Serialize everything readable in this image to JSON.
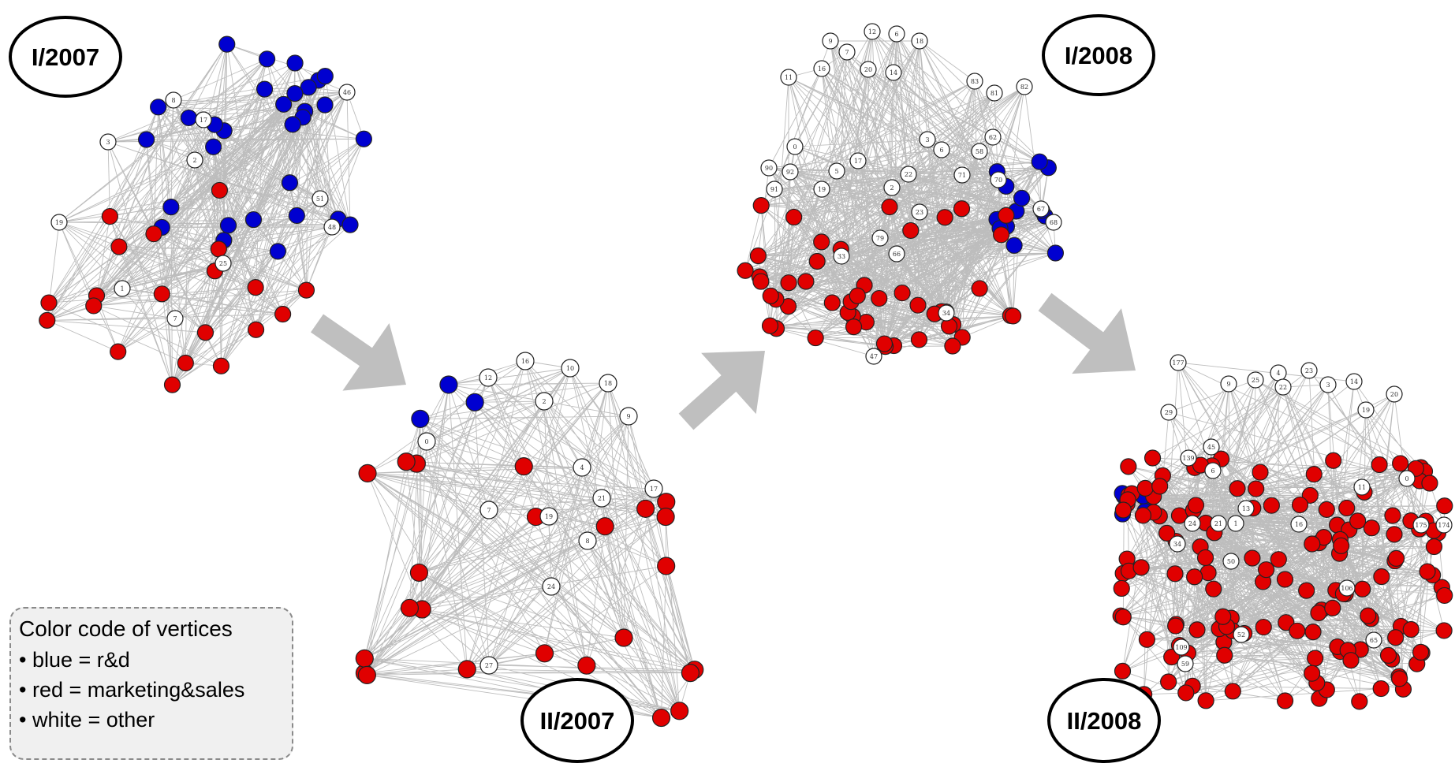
{
  "colors": {
    "rd": "#0000d0",
    "marketing_sales": "#e00000",
    "other": "#ffffff",
    "edge": "#bdbdbd",
    "arrow": "#bfbfbf"
  },
  "periods": [
    {
      "id": "I/2007",
      "label": "I/2007",
      "nodes": [
        {
          "id": "8",
          "group": "other",
          "label": "8"
        },
        {
          "id": "17",
          "group": "other",
          "label": "17"
        },
        {
          "id": "3",
          "group": "other",
          "label": "3"
        },
        {
          "id": "2",
          "group": "other",
          "label": "2"
        },
        {
          "id": "46",
          "group": "other",
          "label": "46"
        },
        {
          "id": "51",
          "group": "other",
          "label": "51"
        },
        {
          "id": "48",
          "group": "other",
          "label": "48"
        },
        {
          "id": "19",
          "group": "other",
          "label": "19"
        },
        {
          "id": "25",
          "group": "other",
          "label": "25"
        },
        {
          "id": "1",
          "group": "other",
          "label": "1"
        },
        {
          "id": "7",
          "group": "other",
          "label": "7"
        }
      ],
      "rd_count": 30,
      "marketing_count": 20
    },
    {
      "id": "II/2007",
      "label": "II/2007",
      "nodes": [
        {
          "id": "16",
          "group": "other",
          "label": "16"
        },
        {
          "id": "12",
          "group": "other",
          "label": "12"
        },
        {
          "id": "10",
          "group": "other",
          "label": "10"
        },
        {
          "id": "18",
          "group": "other",
          "label": "18"
        },
        {
          "id": "2",
          "group": "other",
          "label": "2"
        },
        {
          "id": "9",
          "group": "other",
          "label": "9"
        },
        {
          "id": "0",
          "group": "other",
          "label": "0"
        },
        {
          "id": "4",
          "group": "other",
          "label": "4"
        },
        {
          "id": "17",
          "group": "other",
          "label": "17"
        },
        {
          "id": "21",
          "group": "other",
          "label": "21"
        },
        {
          "id": "7",
          "group": "other",
          "label": "7"
        },
        {
          "id": "19",
          "group": "other",
          "label": "19"
        },
        {
          "id": "8",
          "group": "other",
          "label": "8"
        },
        {
          "id": "24",
          "group": "other",
          "label": "24"
        },
        {
          "id": "27",
          "group": "other",
          "label": "27"
        }
      ],
      "rd_count": 3,
      "marketing_count": 24
    },
    {
      "id": "I/2008",
      "label": "I/2008",
      "nodes": [
        {
          "id": "9",
          "group": "other",
          "label": "9"
        },
        {
          "id": "12",
          "group": "other",
          "label": "12"
        },
        {
          "id": "6",
          "group": "other",
          "label": "6"
        },
        {
          "id": "18",
          "group": "other",
          "label": "18"
        },
        {
          "id": "7",
          "group": "other",
          "label": "7"
        },
        {
          "id": "16",
          "group": "other",
          "label": "16"
        },
        {
          "id": "20",
          "group": "other",
          "label": "20"
        },
        {
          "id": "14",
          "group": "other",
          "label": "14"
        },
        {
          "id": "11",
          "group": "other",
          "label": "11"
        },
        {
          "id": "83",
          "group": "other",
          "label": "83"
        },
        {
          "id": "81",
          "group": "other",
          "label": "81"
        },
        {
          "id": "82",
          "group": "other",
          "label": "82"
        },
        {
          "id": "0",
          "group": "other",
          "label": "0"
        },
        {
          "id": "3",
          "group": "other",
          "label": "3"
        },
        {
          "id": "62",
          "group": "other",
          "label": "62"
        },
        {
          "id": "58",
          "group": "other",
          "label": "58"
        },
        {
          "id": "6b",
          "group": "other",
          "label": "6"
        },
        {
          "id": "90",
          "group": "other",
          "label": "90"
        },
        {
          "id": "92",
          "group": "other",
          "label": "92"
        },
        {
          "id": "5",
          "group": "other",
          "label": "5"
        },
        {
          "id": "17",
          "group": "other",
          "label": "17"
        },
        {
          "id": "22",
          "group": "other",
          "label": "22"
        },
        {
          "id": "71",
          "group": "other",
          "label": "71"
        },
        {
          "id": "70",
          "group": "other",
          "label": "70"
        },
        {
          "id": "91",
          "group": "other",
          "label": "91"
        },
        {
          "id": "19",
          "group": "other",
          "label": "19"
        },
        {
          "id": "2",
          "group": "other",
          "label": "2"
        },
        {
          "id": "23",
          "group": "other",
          "label": "23"
        },
        {
          "id": "67",
          "group": "other",
          "label": "67"
        },
        {
          "id": "68",
          "group": "other",
          "label": "68"
        },
        {
          "id": "79",
          "group": "other",
          "label": "79"
        },
        {
          "id": "66",
          "group": "other",
          "label": "66"
        },
        {
          "id": "33",
          "group": "other",
          "label": "33"
        },
        {
          "id": "34",
          "group": "other",
          "label": "34"
        },
        {
          "id": "47",
          "group": "other",
          "label": "47"
        }
      ],
      "rd_count": 13,
      "marketing_count": 48
    },
    {
      "id": "II/2008",
      "label": "II/2008",
      "nodes": [
        {
          "id": "177",
          "group": "other",
          "label": "177"
        },
        {
          "id": "4",
          "group": "other",
          "label": "4"
        },
        {
          "id": "23",
          "group": "other",
          "label": "23"
        },
        {
          "id": "9",
          "group": "other",
          "label": "9"
        },
        {
          "id": "25",
          "group": "other",
          "label": "25"
        },
        {
          "id": "22",
          "group": "other",
          "label": "22"
        },
        {
          "id": "3",
          "group": "other",
          "label": "3"
        },
        {
          "id": "14",
          "group": "other",
          "label": "14"
        },
        {
          "id": "20",
          "group": "other",
          "label": "20"
        },
        {
          "id": "19",
          "group": "other",
          "label": "19"
        },
        {
          "id": "29",
          "group": "other",
          "label": "29"
        },
        {
          "id": "45",
          "group": "other",
          "label": "45"
        },
        {
          "id": "139",
          "group": "other",
          "label": "139"
        },
        {
          "id": "6",
          "group": "other",
          "label": "6"
        },
        {
          "id": "11",
          "group": "other",
          "label": "11"
        },
        {
          "id": "0",
          "group": "other",
          "label": "0"
        },
        {
          "id": "13",
          "group": "other",
          "label": "13"
        },
        {
          "id": "24",
          "group": "other",
          "label": "24"
        },
        {
          "id": "21",
          "group": "other",
          "label": "21"
        },
        {
          "id": "1",
          "group": "other",
          "label": "1"
        },
        {
          "id": "16",
          "group": "other",
          "label": "16"
        },
        {
          "id": "175",
          "group": "other",
          "label": "175"
        },
        {
          "id": "174",
          "group": "other",
          "label": "174"
        },
        {
          "id": "34",
          "group": "other",
          "label": "34"
        },
        {
          "id": "50",
          "group": "other",
          "label": "50"
        },
        {
          "id": "106",
          "group": "other",
          "label": "106"
        },
        {
          "id": "52",
          "group": "other",
          "label": "52"
        },
        {
          "id": "109",
          "group": "other",
          "label": "109"
        },
        {
          "id": "59",
          "group": "other",
          "label": "59"
        },
        {
          "id": "65",
          "group": "other",
          "label": "65"
        }
      ],
      "rd_count": 6,
      "marketing_count": 150
    }
  ],
  "legend": {
    "title": "Color code of vertices",
    "items": [
      {
        "text": "• blue = r&d",
        "group": "rd"
      },
      {
        "text": "• red = marketing&sales",
        "group": "marketing_sales"
      },
      {
        "text": "• white = other",
        "group": "other"
      }
    ]
  }
}
